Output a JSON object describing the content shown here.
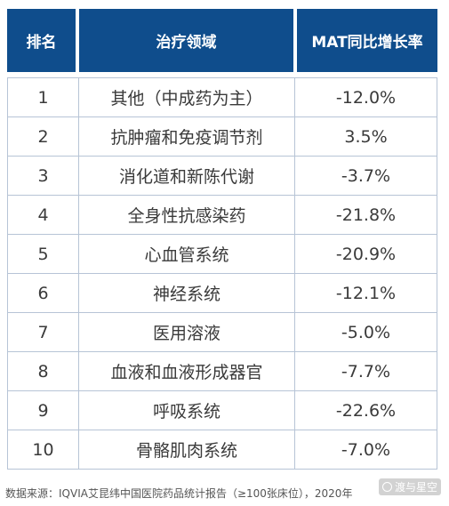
{
  "table": {
    "headers": {
      "rank": "排名",
      "area": "治疗领域",
      "growth": "MAT同比增长率"
    },
    "rows": [
      {
        "rank": "1",
        "area": "其他（中成药为主）",
        "growth": "-12.0%"
      },
      {
        "rank": "2",
        "area": "抗肿瘤和免疫调节剂",
        "growth": "3.5%"
      },
      {
        "rank": "3",
        "area": "消化道和新陈代谢",
        "growth": "-3.7%"
      },
      {
        "rank": "4",
        "area": "全身性抗感染药",
        "growth": "-21.8%"
      },
      {
        "rank": "5",
        "area": "心血管系统",
        "growth": "-20.9%"
      },
      {
        "rank": "6",
        "area": "神经系统",
        "growth": "-12.1%"
      },
      {
        "rank": "7",
        "area": "医用溶液",
        "growth": "-5.0%"
      },
      {
        "rank": "8",
        "area": "血液和血液形成器官",
        "growth": "-7.7%"
      },
      {
        "rank": "9",
        "area": "呼吸系统",
        "growth": "-22.6%"
      },
      {
        "rank": "10",
        "area": "骨骼肌肉系统",
        "growth": "-7.0%"
      }
    ]
  },
  "footer": {
    "source": "数据来源：IQVIA艾昆纬中国医院药品统计报告（≥100张床位），2020年"
  },
  "watermark": {
    "text": "渡与星空"
  }
}
